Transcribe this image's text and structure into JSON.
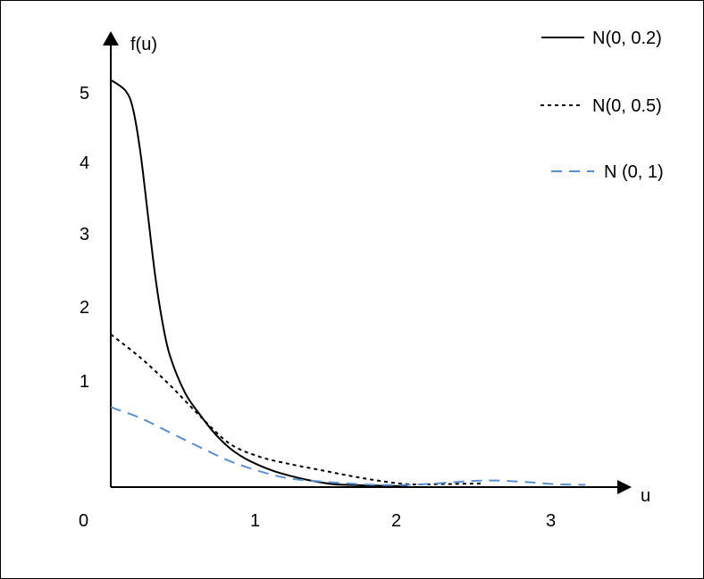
{
  "chart_data": {
    "type": "line",
    "title": "",
    "xlabel": "u",
    "ylabel": "f(u)",
    "xlim": [
      0,
      3.2
    ],
    "ylim": [
      0,
      5.6
    ],
    "x_ticks": [
      "0",
      "1",
      "2",
      "3"
    ],
    "y_ticks": [
      "1",
      "2",
      "3",
      "4",
      "5"
    ],
    "grid": false,
    "legend_position": "top-right",
    "series": [
      {
        "name": "N(0, 0.2)",
        "style": "solid",
        "color": "#000000",
        "x": [
          0,
          0.1,
          0.15,
          0.2,
          0.25,
          0.3,
          0.35,
          0.4,
          0.5,
          0.6,
          0.7,
          0.8,
          0.9,
          1.0,
          1.1,
          1.2,
          1.3,
          1.4,
          1.5,
          1.6,
          1.8,
          2.0
        ],
        "y": [
          5.6,
          5.45,
          5.2,
          4.6,
          3.75,
          2.9,
          2.25,
          1.8,
          1.3,
          1.0,
          0.74,
          0.54,
          0.4,
          0.3,
          0.22,
          0.16,
          0.11,
          0.07,
          0.04,
          0.03,
          0.02,
          0.01
        ]
      },
      {
        "name": "N(0, 0.5)",
        "style": "dotted",
        "color": "#000000",
        "x": [
          0,
          0.2,
          0.4,
          0.6,
          0.8,
          1.0,
          1.2,
          1.4,
          1.6,
          1.8,
          2.0,
          2.2,
          2.5
        ],
        "y": [
          2.1,
          1.78,
          1.4,
          0.98,
          0.6,
          0.42,
          0.32,
          0.24,
          0.16,
          0.09,
          0.04,
          0.04,
          0.05
        ]
      },
      {
        "name": "N (0, 1)",
        "style": "dashed",
        "color": "#5b8fd0",
        "x": [
          0,
          0.2,
          0.4,
          0.6,
          0.8,
          1.0,
          1.2,
          1.4,
          1.6,
          1.8,
          2.0,
          2.2,
          2.4,
          2.6,
          2.8,
          3.0,
          3.2
        ],
        "y": [
          1.1,
          0.95,
          0.75,
          0.55,
          0.36,
          0.22,
          0.12,
          0.08,
          0.05,
          0.03,
          0.03,
          0.05,
          0.08,
          0.09,
          0.07,
          0.04,
          0.03
        ]
      }
    ]
  }
}
